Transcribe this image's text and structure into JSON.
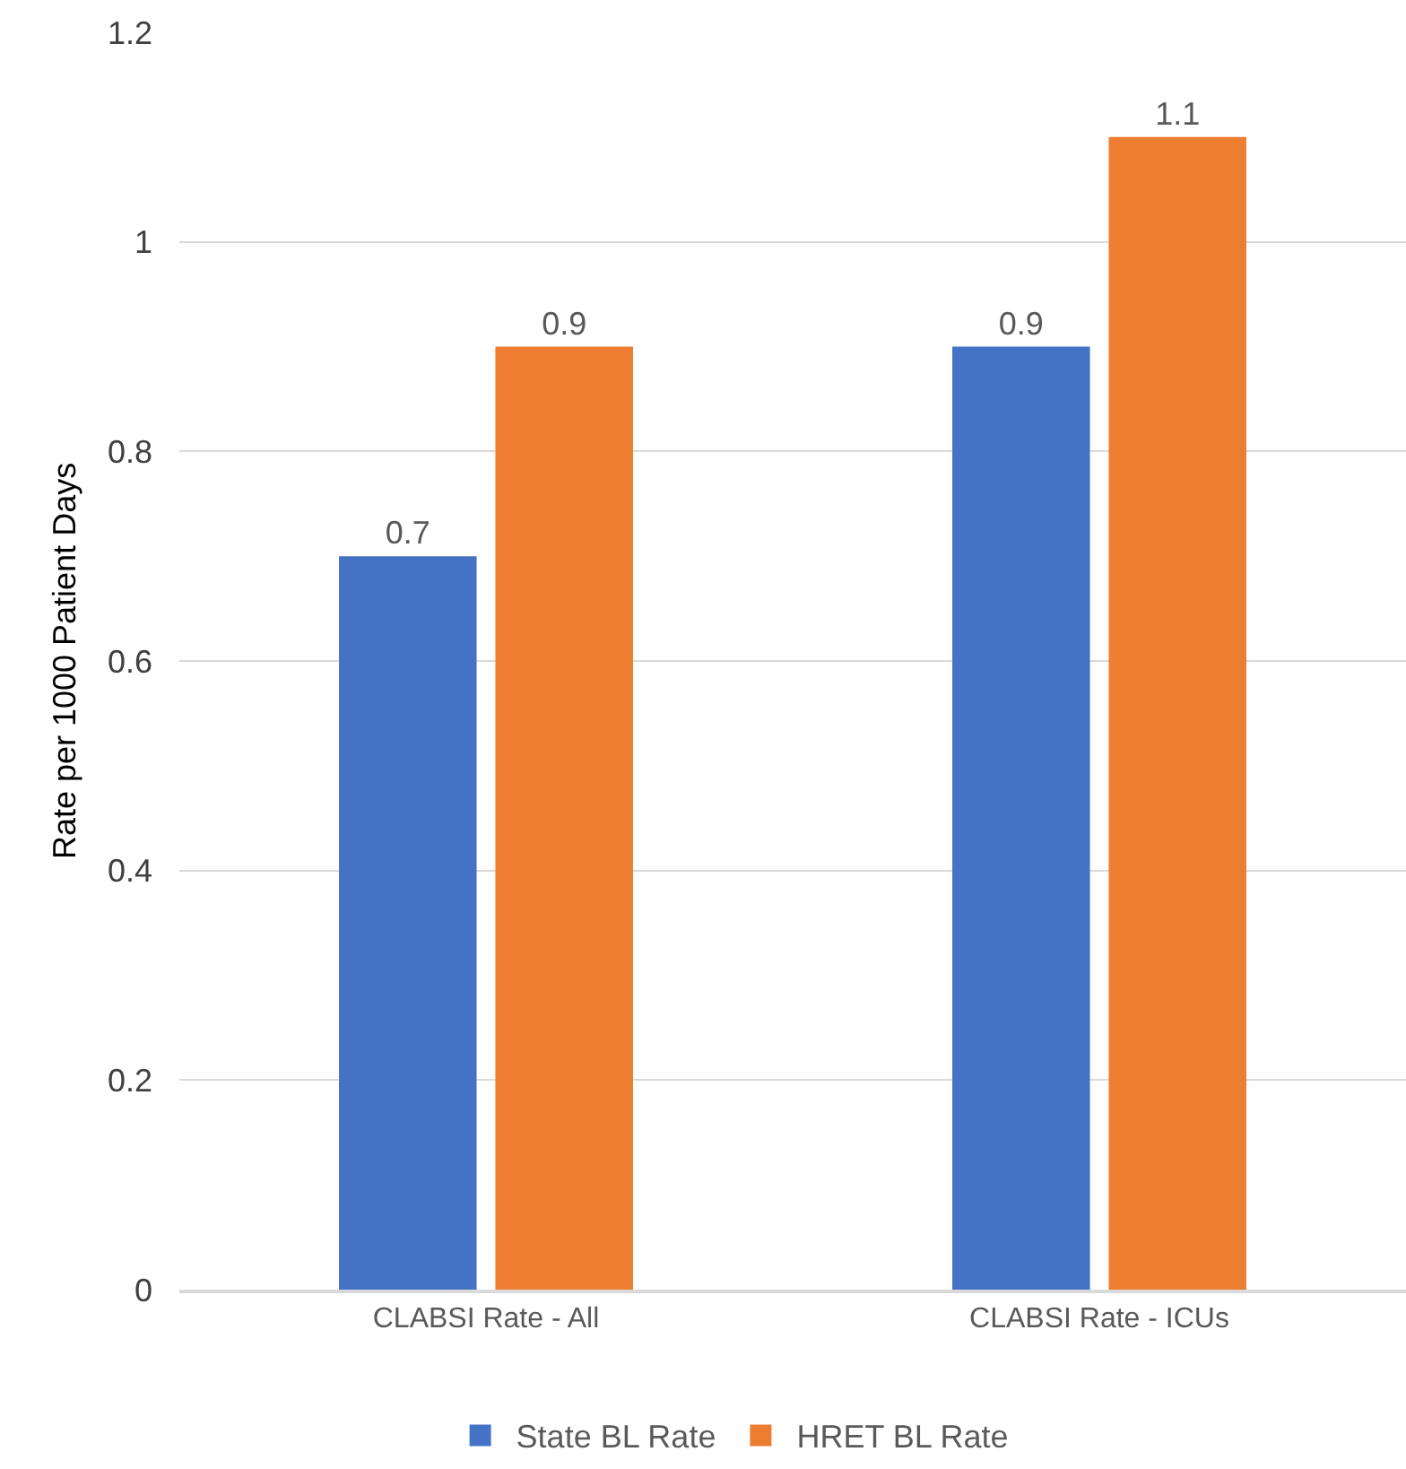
{
  "chart_data": {
    "type": "bar",
    "ylabel": "Rate per 1000 Patient Days",
    "categories": [
      "CLABSI Rate - All",
      "CLABSI Rate - ICUs"
    ],
    "series": [
      {
        "name": "State BL Rate",
        "color": "#4472c4",
        "values": [
          0.7,
          0.9
        ]
      },
      {
        "name": "HRET BL Rate",
        "color": "#ed7d31",
        "values": [
          0.9,
          1.1
        ]
      }
    ],
    "ylim": [
      0,
      1.2
    ],
    "yticks": [
      0,
      0.2,
      0.4,
      0.6,
      0.8,
      1,
      1.2
    ],
    "grid": "y",
    "legend": "bottom",
    "data_labels": true
  }
}
